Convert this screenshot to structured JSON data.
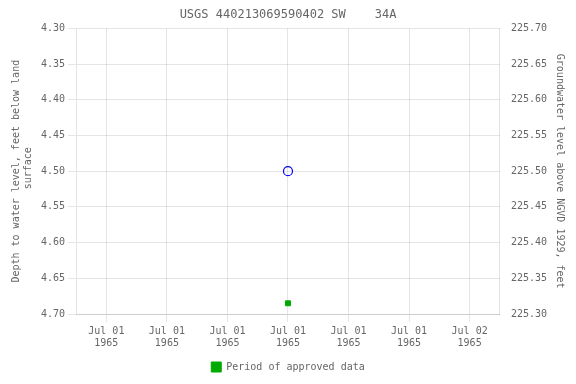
{
  "chart_data": {
    "type": "scatter",
    "title": "USGS 440213069590402 SW    34A",
    "ylabel": "Depth to water level, feet below land\n surface",
    "y2label": "Groundwater level above NGVD 1929, feet",
    "categories": [
      "Jul 01\n1965",
      "Jul 01\n1965",
      "Jul 01\n1965",
      "Jul 01\n1965",
      "Jul 01\n1965",
      "Jul 01\n1965",
      "Jul 02\n1965"
    ],
    "series": [
      {
        "values": [
          null,
          null,
          null,
          4.5,
          null,
          null,
          null
        ],
        "color": "blue",
        "marker": "open_circle"
      },
      {
        "name": "Period of approved data",
        "values": [
          null,
          null,
          null,
          4.685,
          null,
          null,
          null
        ],
        "color": "#00aa00",
        "marker": "square"
      }
    ],
    "ylim": [
      4.7,
      4.3
    ],
    "yticks": [
      {
        "value": 4.3,
        "label": "4.30"
      },
      {
        "value": 4.35,
        "label": "4.35"
      },
      {
        "value": 4.4,
        "label": "4.40"
      },
      {
        "value": 4.45,
        "label": "4.45"
      },
      {
        "value": 4.5,
        "label": "4.50"
      },
      {
        "value": 4.55,
        "label": "4.55"
      },
      {
        "value": 4.6,
        "label": "4.60"
      },
      {
        "value": 4.65,
        "label": "4.65"
      },
      {
        "value": 4.7,
        "label": "4.70"
      }
    ],
    "y2lim": [
      225.3,
      225.7
    ],
    "y2ticks": [
      {
        "value": 225.7,
        "label": "225.70"
      },
      {
        "value": 225.65,
        "label": "225.65"
      },
      {
        "value": 225.6,
        "label": "225.60"
      },
      {
        "value": 225.55,
        "label": "225.55"
      },
      {
        "value": 225.5,
        "label": "225.50"
      },
      {
        "value": 225.45,
        "label": "225.45"
      },
      {
        "value": 225.4,
        "label": "225.40"
      },
      {
        "value": 225.35,
        "label": "225.35"
      },
      {
        "value": 225.3,
        "label": "225.30"
      }
    ],
    "grid": true,
    "legend": "bottom"
  }
}
